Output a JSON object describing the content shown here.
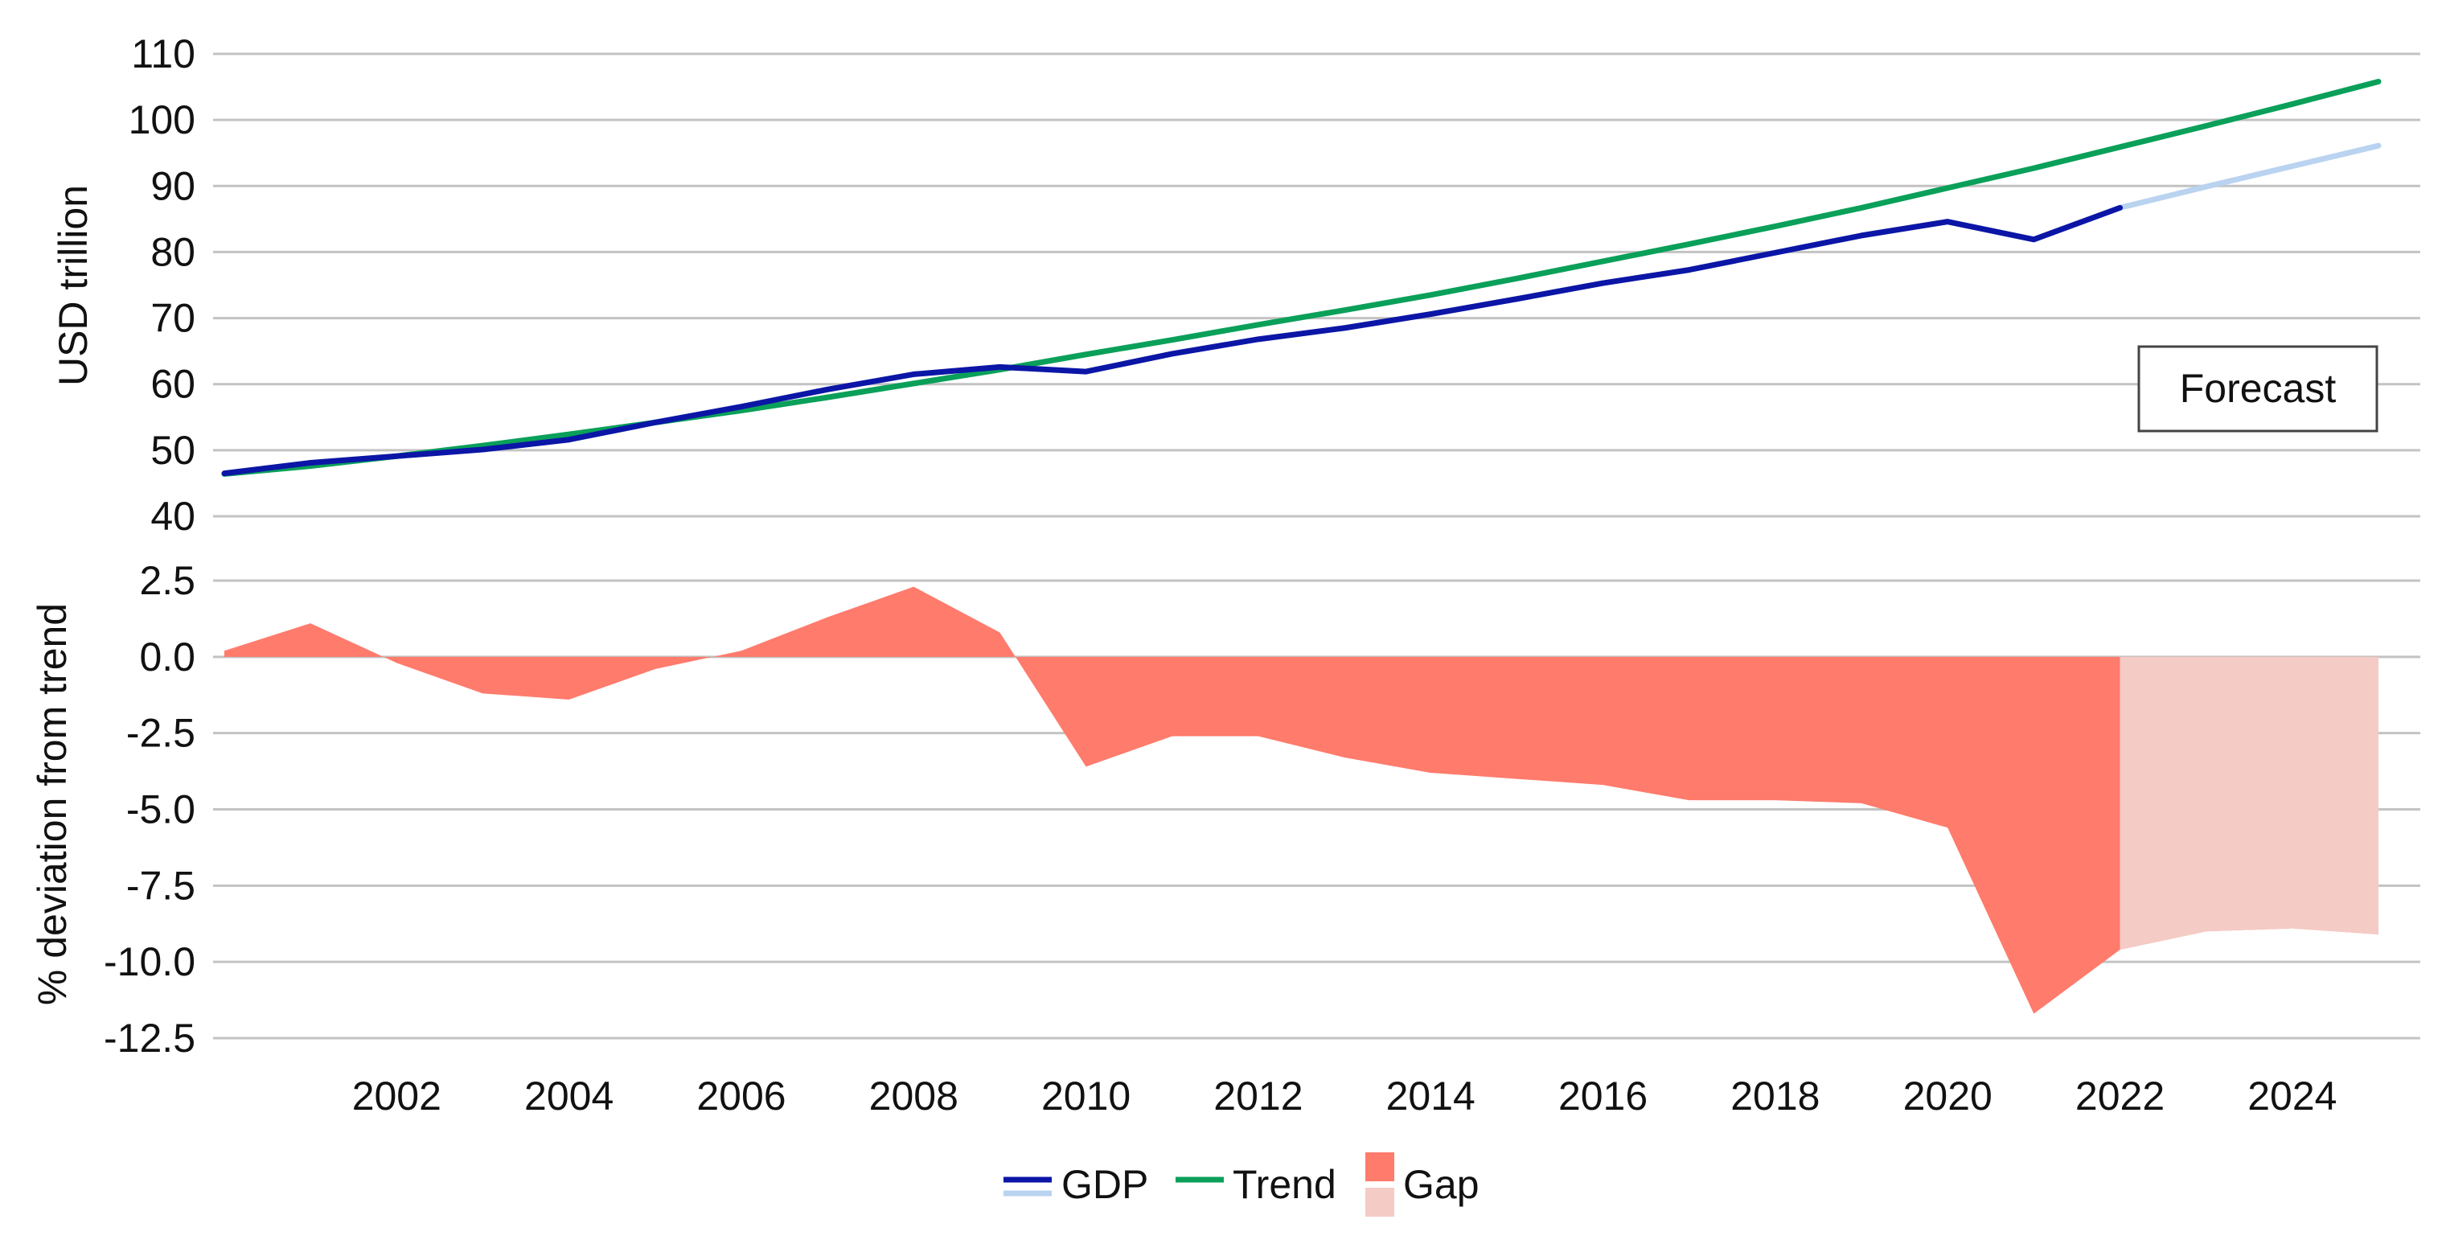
{
  "chart_data": [
    {
      "type": "line",
      "ylabel": "USD trillion",
      "ylim": [
        40,
        110
      ],
      "yticks": [
        40,
        50,
        60,
        70,
        80,
        90,
        100,
        110
      ],
      "x": [
        2000,
        2001,
        2002,
        2003,
        2004,
        2005,
        2006,
        2007,
        2008,
        2009,
        2010,
        2011,
        2012,
        2013,
        2014,
        2015,
        2016,
        2017,
        2018,
        2019,
        2020,
        2021,
        2022,
        2023,
        2024,
        2025
      ],
      "series": [
        {
          "name": "GDP",
          "values": [
            46.5,
            48.1,
            49.1,
            50.1,
            51.6,
            54.2,
            56.6,
            59.2,
            61.5,
            62.6,
            61.9,
            64.6,
            66.8,
            68.5,
            70.6,
            72.9,
            75.3,
            77.3,
            79.9,
            82.5,
            84.6,
            81.9,
            86.7,
            null,
            null,
            null
          ],
          "color": "#0b16a6"
        },
        {
          "name": "GDP",
          "segment": "forecast",
          "values": [
            null,
            null,
            null,
            null,
            null,
            null,
            null,
            null,
            null,
            null,
            null,
            null,
            null,
            null,
            null,
            null,
            null,
            null,
            null,
            null,
            null,
            null,
            86.7,
            89.9,
            93.0,
            96.1
          ],
          "color": "#b9d3f0"
        },
        {
          "name": "Trend",
          "values": [
            46.4,
            47.6,
            49.1,
            50.7,
            52.4,
            54.2,
            56.0,
            58.0,
            60.1,
            62.2,
            64.5,
            66.7,
            69.0,
            71.2,
            73.5,
            76.0,
            78.6,
            81.2,
            83.9,
            86.7,
            89.7,
            92.7,
            95.9,
            99.1,
            102.4,
            105.8
          ],
          "color": "#0aa05a"
        }
      ],
      "annotations": [
        "Forecast"
      ]
    },
    {
      "type": "area",
      "ylabel": "% deviation from trend",
      "ylim": [
        -12.5,
        2.5
      ],
      "yticks": [
        "2.5",
        "0.0",
        "-2.5",
        "-5.0",
        "-7.5",
        "-10.0",
        "-12.5"
      ],
      "xticks": [
        "2002",
        "2004",
        "2006",
        "2008",
        "2010",
        "2012",
        "2014",
        "2016",
        "2018",
        "2020",
        "2022",
        "2024"
      ],
      "x": [
        2000,
        2001,
        2002,
        2003,
        2004,
        2005,
        2006,
        2007,
        2008,
        2009,
        2010,
        2011,
        2012,
        2013,
        2014,
        2015,
        2016,
        2017,
        2018,
        2019,
        2020,
        2021,
        2022,
        2023,
        2024,
        2025
      ],
      "series": [
        {
          "name": "Gap",
          "values": [
            0.2,
            1.1,
            -0.2,
            -1.2,
            -1.4,
            -0.4,
            0.2,
            1.3,
            2.3,
            0.8,
            -3.6,
            -2.6,
            -2.6,
            -3.3,
            -3.8,
            -4.0,
            -4.2,
            -4.7,
            -4.7,
            -4.8,
            -5.6,
            -11.7,
            -9.6,
            -9.0,
            -8.9,
            -9.1
          ],
          "color": "#ff7b6c"
        },
        {
          "name": "Gap",
          "segment": "forecast",
          "values": [
            null,
            null,
            null,
            null,
            null,
            null,
            null,
            null,
            null,
            null,
            null,
            null,
            null,
            null,
            null,
            null,
            null,
            null,
            null,
            null,
            null,
            null,
            -9.6,
            -9.0,
            -8.9,
            -9.1
          ],
          "color": "#f5cbc5"
        }
      ]
    }
  ],
  "legend": {
    "items": [
      {
        "label": "GDP",
        "swatch": "line",
        "color": "#0b16a6",
        "forecast_color": "#b9d3f0"
      },
      {
        "label": "Trend",
        "swatch": "line",
        "color": "#0aa05a"
      },
      {
        "label": "Gap",
        "swatch": "box",
        "color": "#ff7b6c",
        "forecast_color": "#f5cbc5"
      }
    ]
  },
  "colors": {
    "grid": "#c3c3c3",
    "text": "#111111"
  }
}
